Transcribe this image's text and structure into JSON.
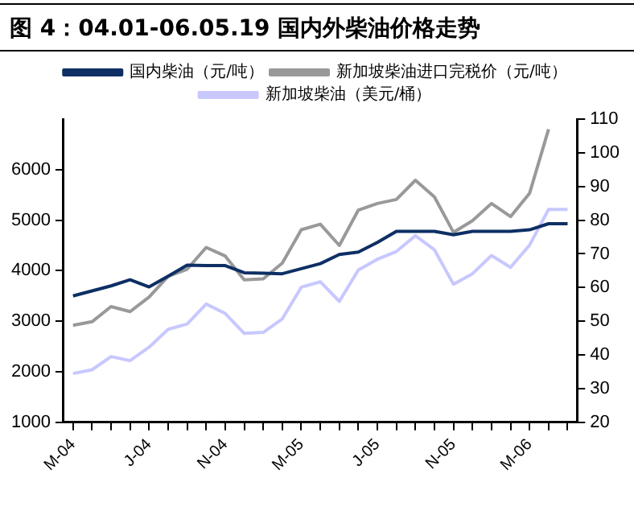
{
  "chart_data": {
    "type": "line",
    "title": "图 4：04.01-06.05.19 国内外柴油价格走势",
    "categories": [
      "M-04",
      null,
      null,
      null,
      "J-04",
      null,
      null,
      null,
      "N-04",
      null,
      null,
      null,
      "M-05",
      null,
      null,
      null,
      "J-05",
      null,
      null,
      null,
      "N-05",
      null,
      null,
      null,
      "M-06",
      null,
      null
    ],
    "series": [
      {
        "name": "国内柴油（元/吨）",
        "color": "#0d2f64",
        "values": [
          3500,
          3600,
          3700,
          3820,
          3680,
          3890,
          4110,
          4100,
          4100,
          3960,
          3950,
          3940,
          4040,
          4140,
          4320,
          4370,
          4560,
          4780,
          4780,
          4780,
          4710,
          4780,
          4780,
          4780,
          4810,
          4930,
          4930
        ]
      },
      {
        "name": "新加坡柴油进口完税价（元/吨）",
        "color": "#999999",
        "values": [
          2920,
          2990,
          3290,
          3190,
          3480,
          3890,
          4030,
          4460,
          4290,
          3820,
          3840,
          4150,
          4810,
          4920,
          4500,
          5200,
          5330,
          5410,
          5790,
          5460,
          4760,
          4990,
          5330,
          5070,
          5530,
          6800,
          null
        ]
      },
      {
        "name": "新加坡柴油（美元/桶）",
        "color": "#c8c8ff",
        "axis": "y2",
        "values": [
          34.5,
          35.6,
          39.5,
          38.3,
          42.3,
          47.6,
          49.2,
          55.1,
          52.3,
          46.4,
          46.7,
          50.7,
          60.1,
          61.7,
          55.9,
          65.2,
          68.4,
          70.7,
          75.4,
          71.2,
          61.0,
          64.1,
          69.5,
          66.0,
          72.6,
          83.2,
          83.2
        ]
      }
    ],
    "ylim": [
      1000,
      7000
    ],
    "yticks": [
      1000,
      2000,
      3000,
      4000,
      5000,
      6000
    ],
    "y2lim": [
      20,
      110
    ],
    "y2ticks": [
      20,
      30,
      40,
      50,
      60,
      70,
      80,
      90,
      100,
      110
    ],
    "grid": false,
    "legend": "top",
    "marker": "none",
    "line_style": "solid"
  }
}
